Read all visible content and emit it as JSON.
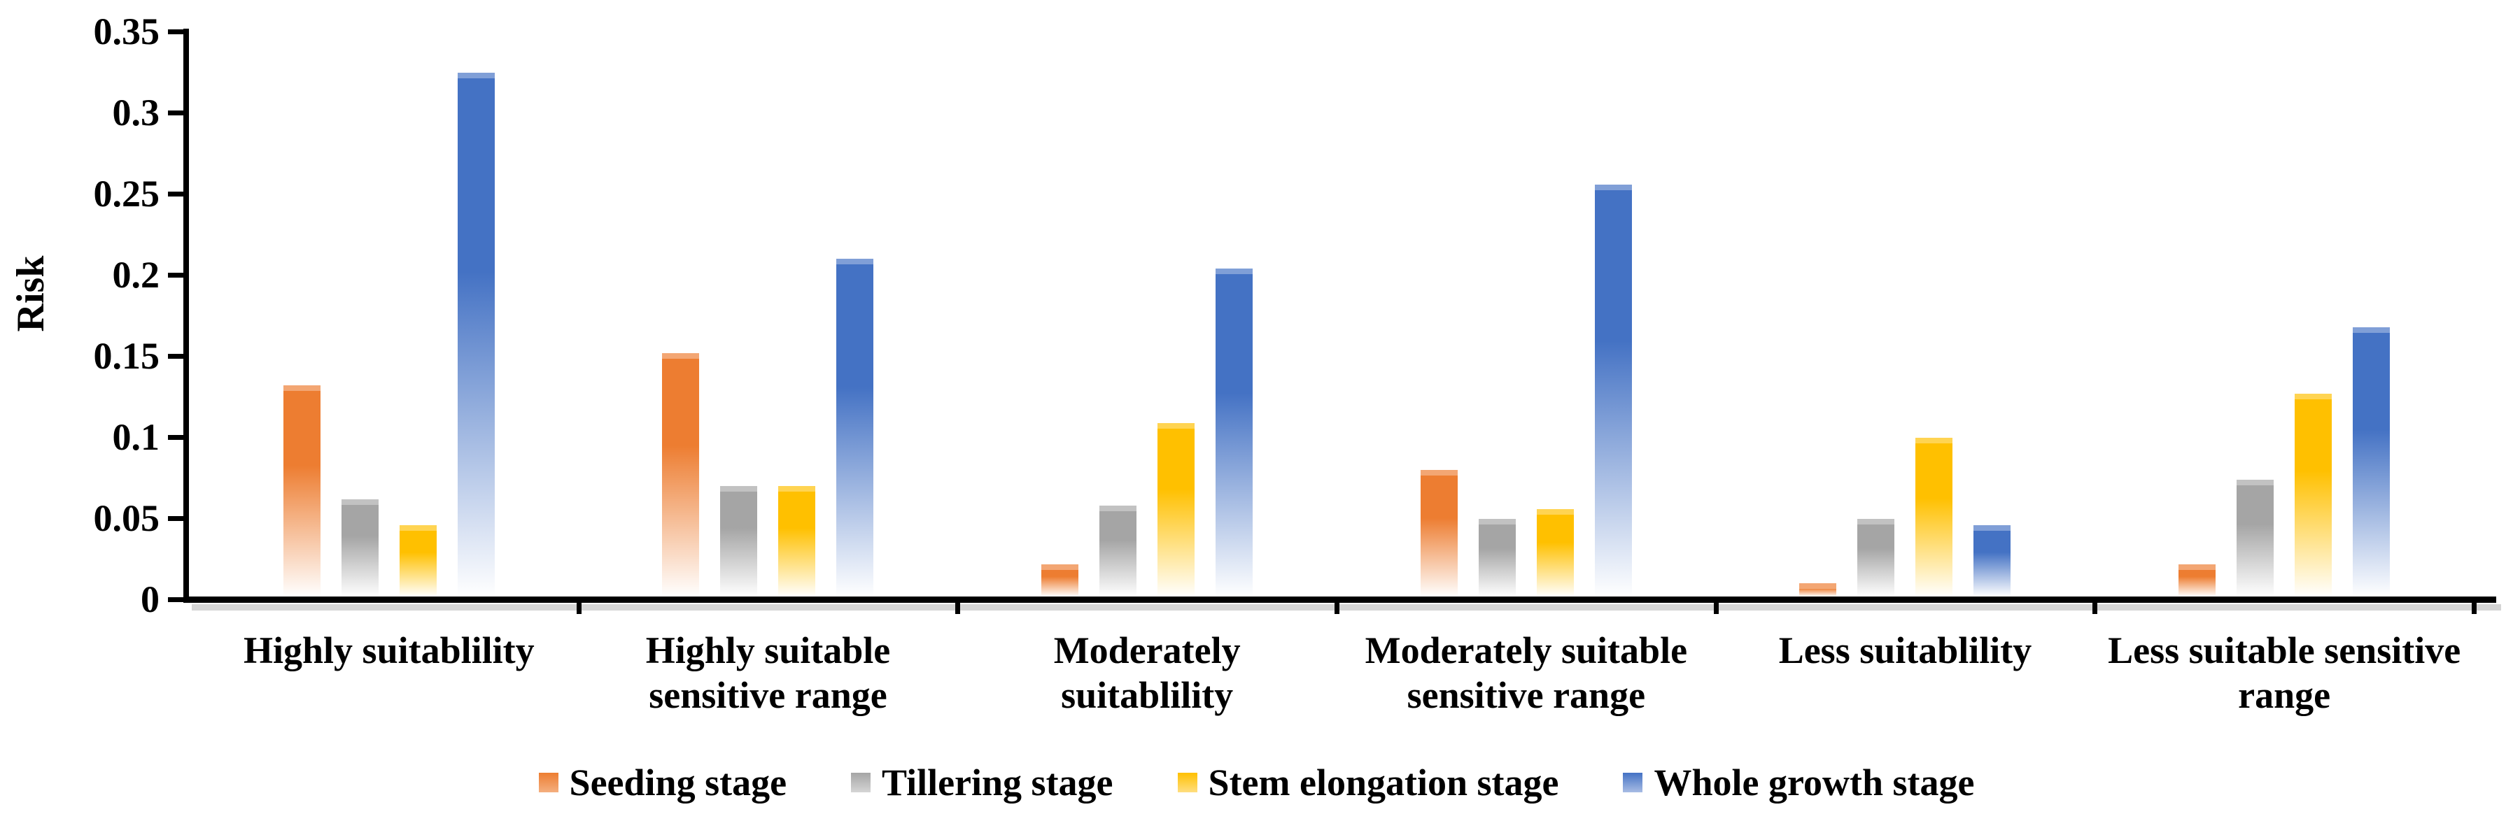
{
  "chart_data": {
    "type": "bar",
    "title": "",
    "ylabel": "Risk",
    "xlabel": "",
    "ylim": [
      0,
      0.35
    ],
    "ytick_labels": [
      "0.35",
      "0.3",
      "0.25",
      "0.2",
      "0.15",
      "0.1",
      "0.05",
      "0"
    ],
    "yticks": [
      0.35,
      0.3,
      0.25,
      0.2,
      0.15,
      0.1,
      0.05,
      0
    ],
    "grid": false,
    "legend_position": "bottom-center",
    "bar_fill_style": "vertical gradient fading to white toward baseline",
    "categories": [
      {
        "lines": [
          "Highly suitablility"
        ]
      },
      {
        "lines": [
          "Highly suitable",
          "sensitive range"
        ]
      },
      {
        "lines": [
          "Moderately",
          "suitablility"
        ]
      },
      {
        "lines": [
          "Moderately suitable",
          "sensitive range"
        ]
      },
      {
        "lines": [
          "Less suitablility"
        ]
      },
      {
        "lines": [
          "Less suitable sensitive",
          "range"
        ]
      }
    ],
    "series": [
      {
        "name": "Seeding stage",
        "color": "#ED7D31",
        "color_light": "#F4AF7F",
        "values": [
          0.13,
          0.15,
          0.02,
          0.078,
          0.008,
          0.02
        ]
      },
      {
        "name": "Tillering stage",
        "color": "#A5A5A5",
        "color_light": "#D5D5D5",
        "values": [
          0.06,
          0.068,
          0.056,
          0.048,
          0.048,
          0.072
        ]
      },
      {
        "name": "Stem elongation stage",
        "color": "#FFC000",
        "color_light": "#FFDE80",
        "values": [
          0.044,
          0.068,
          0.107,
          0.054,
          0.098,
          0.125
        ]
      },
      {
        "name": "Whole growth stage",
        "color": "#4472C4",
        "color_light": "#A8BCE4",
        "values": [
          0.323,
          0.208,
          0.202,
          0.254,
          0.044,
          0.166
        ]
      }
    ]
  }
}
